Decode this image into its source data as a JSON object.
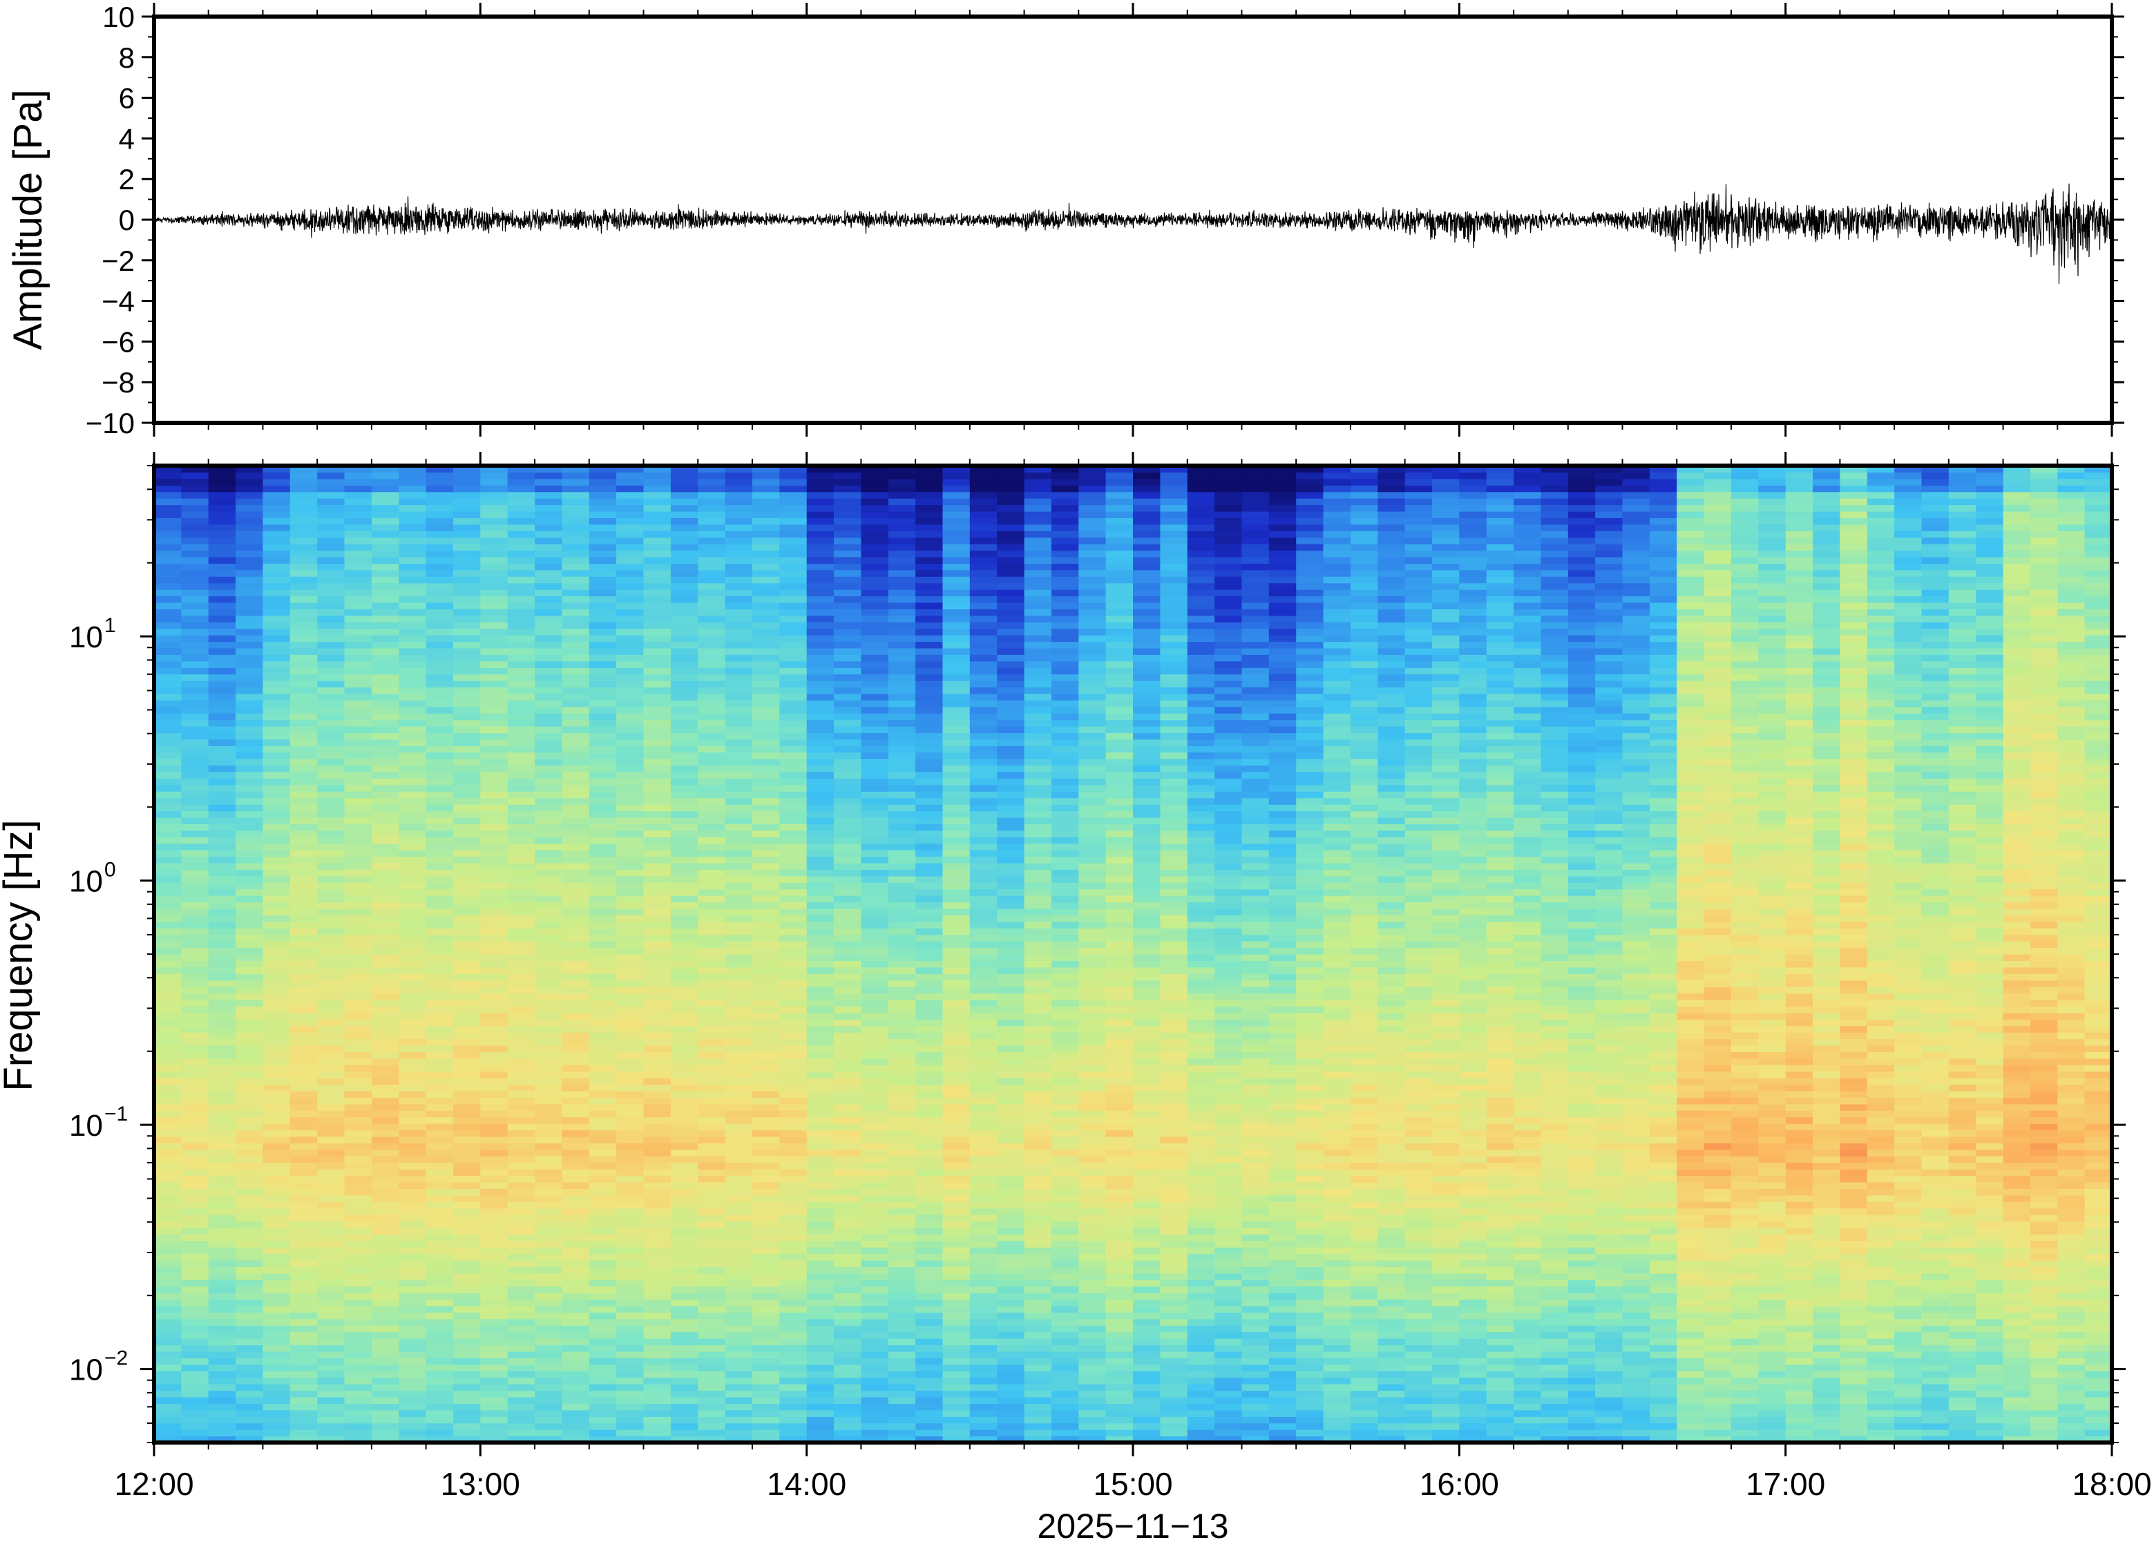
{
  "chart_data": [
    {
      "type": "line",
      "ylabel": "Amplitude [Pa]",
      "ylim": [
        -10,
        10
      ],
      "y_ticks": [
        "10",
        "8",
        "6",
        "4",
        "2",
        "0",
        "−2",
        "−4",
        "−6",
        "−8",
        "−10"
      ],
      "x_range": [
        "12:00",
        "18:00"
      ],
      "envelope": {
        "times": [
          "12:00",
          "12:30",
          "12:40",
          "13:00",
          "13:10",
          "13:40",
          "14:00",
          "14:10",
          "14:30",
          "14:45",
          "15:00",
          "15:30",
          "15:50",
          "16:00",
          "16:20",
          "16:35",
          "16:45",
          "17:00",
          "17:15",
          "17:40",
          "17:50",
          "18:00"
        ],
        "upper": [
          0.1,
          0.5,
          0.9,
          0.6,
          0.5,
          0.5,
          0.2,
          0.4,
          0.3,
          0.5,
          0.3,
          0.4,
          0.5,
          0.5,
          0.3,
          0.5,
          1.3,
          0.8,
          0.8,
          0.7,
          1.4,
          0.9
        ],
        "lower": [
          -0.1,
          -0.6,
          -0.9,
          -0.6,
          -0.5,
          -0.5,
          -0.2,
          -0.4,
          -0.3,
          -0.5,
          -0.3,
          -0.4,
          -0.6,
          -1.2,
          -0.3,
          -0.6,
          -1.8,
          -1.0,
          -1.0,
          -0.9,
          -2.4,
          -1.2
        ]
      }
    },
    {
      "type": "heatmap",
      "ylabel": "Frequency [Hz]",
      "xlabel": "2025−11−13",
      "y_scale": "log",
      "ylim": [
        0.005,
        50
      ],
      "y_ticks": [
        {
          "base": "10",
          "exp": "1",
          "value": 10
        },
        {
          "base": "10",
          "exp": "0",
          "value": 1
        },
        {
          "base": "10",
          "exp": "−1",
          "value": 0.1
        },
        {
          "base": "10",
          "exp": "−2",
          "value": 0.01
        }
      ],
      "x_ticks": [
        "12:00",
        "13:00",
        "14:00",
        "15:00",
        "16:00",
        "17:00",
        "18:00"
      ],
      "colormap": [
        "#0d0d6b",
        "#1a2ec8",
        "#2f80ea",
        "#3fc4f2",
        "#7fe6c6",
        "#c8ee8c",
        "#f2e47e",
        "#fcb45e",
        "#f36a3e"
      ],
      "time_segment_minutes": 5,
      "activity_by_segment": [
        0.3,
        0.3,
        0.2,
        0.3,
        0.45,
        0.55,
        0.5,
        0.55,
        0.6,
        0.55,
        0.5,
        0.55,
        0.6,
        0.55,
        0.5,
        0.55,
        0.45,
        0.5,
        0.55,
        0.45,
        0.5,
        0.45,
        0.5,
        0.45,
        0.2,
        0.25,
        0.15,
        0.2,
        0.1,
        0.35,
        0.15,
        0.1,
        0.3,
        0.2,
        0.35,
        0.45,
        0.25,
        0.4,
        0.15,
        0.1,
        0.15,
        0.1,
        0.25,
        0.35,
        0.4,
        0.3,
        0.35,
        0.4,
        0.35,
        0.4,
        0.35,
        0.3,
        0.2,
        0.25,
        0.3,
        0.35,
        0.75,
        0.8,
        0.7,
        0.65,
        0.75,
        0.6,
        0.8,
        0.65,
        0.55,
        0.5,
        0.6,
        0.55,
        0.8,
        0.85,
        0.75,
        0.7
      ]
    }
  ]
}
